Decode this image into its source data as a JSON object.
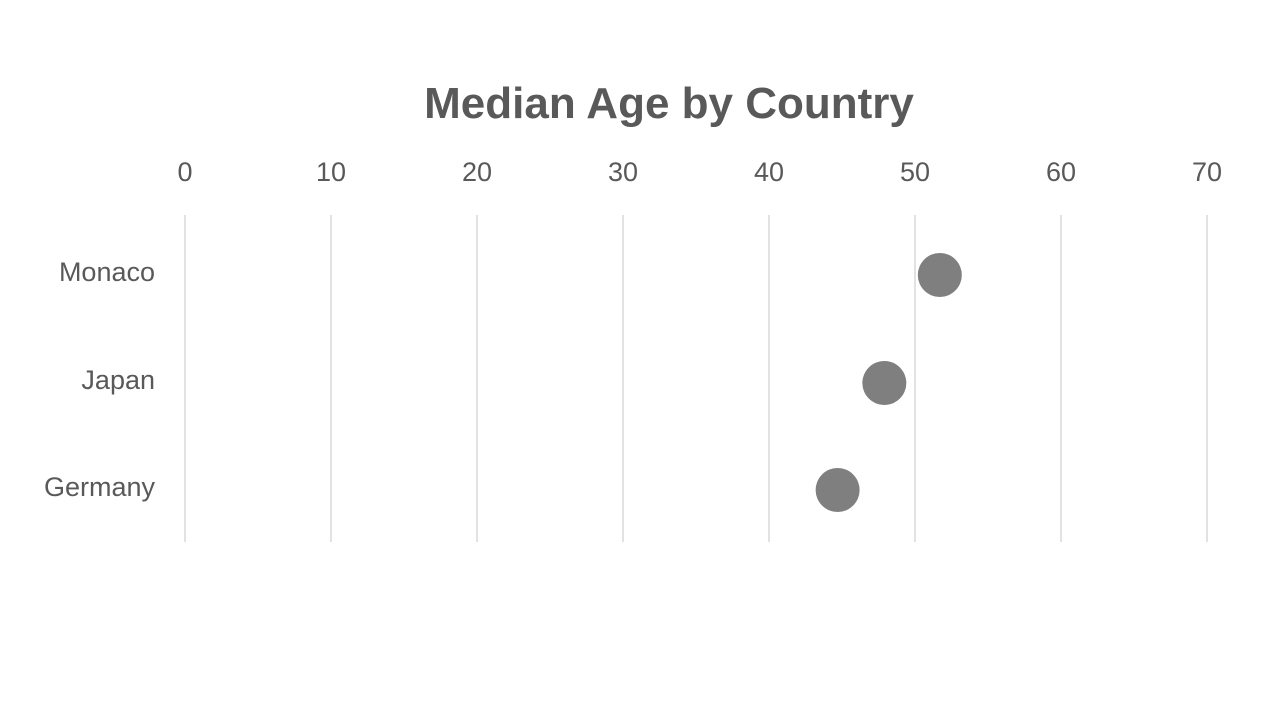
{
  "chart_data": {
    "type": "scatter",
    "title": "Median Age by Country",
    "categories": [
      "Monaco",
      "Japan",
      "Germany"
    ],
    "values": [
      51.7,
      47.9,
      44.7
    ],
    "xlim": [
      0,
      70
    ],
    "x_ticks": [
      0,
      10,
      20,
      30,
      40,
      50,
      60,
      70
    ],
    "x_axis_position": "top",
    "grid": true,
    "legend": "none",
    "point_color": "#7f7f7f",
    "gridline_color": "#d9d9d9",
    "text_color": "#595959"
  }
}
